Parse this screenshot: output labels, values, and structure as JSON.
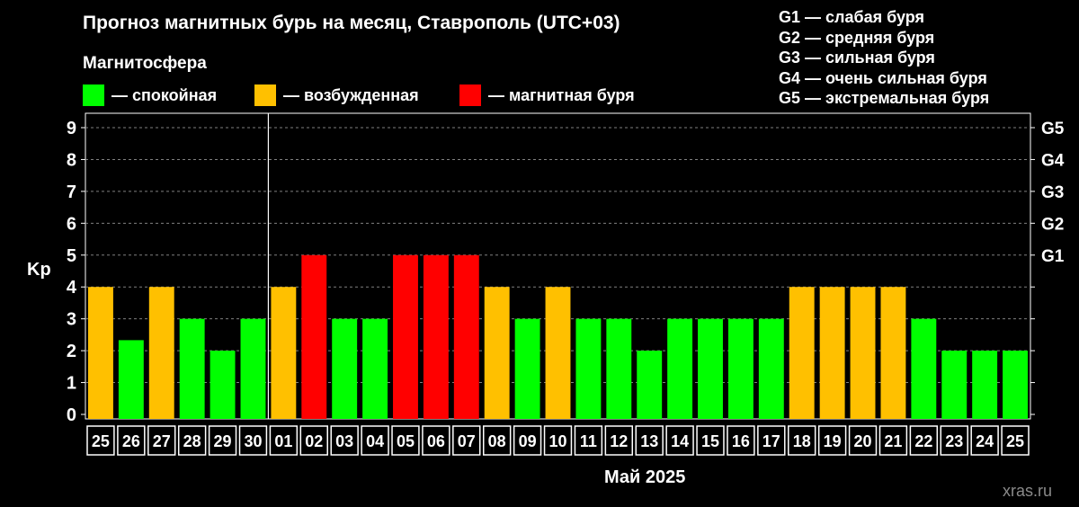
{
  "title": "Прогноз магнитных бурь на месяц, Ставрополь (UTC+03)",
  "legend": {
    "title": "Магнитосфера",
    "items": [
      {
        "label": "— спокойная",
        "color": "#00ff00"
      },
      {
        "label": "— возбужденная",
        "color": "#ffc000"
      },
      {
        "label": "— магнитная буря",
        "color": "#ff0000"
      }
    ]
  },
  "storm_scale": [
    "G1 — слабая буря",
    "G2 — средняя буря",
    "G3 — сильная буря",
    "G4 — очень сильная буря",
    "G5 — экстремальная буря"
  ],
  "watermark": "xras.ru",
  "chart_data": {
    "type": "bar",
    "ylabel": "Kp",
    "xlabel": "Май 2025",
    "ylim": [
      0,
      9
    ],
    "yticks": [
      0,
      1,
      2,
      3,
      4,
      5,
      6,
      7,
      8,
      9
    ],
    "right_ticks": [
      {
        "value": 5,
        "label": "G1"
      },
      {
        "value": 6,
        "label": "G2"
      },
      {
        "value": 7,
        "label": "G3"
      },
      {
        "value": 8,
        "label": "G4"
      },
      {
        "value": 9,
        "label": "G5"
      }
    ],
    "grid": true,
    "month_separator_after": "30",
    "categories": [
      "25",
      "26",
      "27",
      "28",
      "29",
      "30",
      "01",
      "02",
      "03",
      "04",
      "05",
      "06",
      "07",
      "08",
      "09",
      "10",
      "11",
      "12",
      "13",
      "14",
      "15",
      "16",
      "17",
      "18",
      "19",
      "20",
      "21",
      "22",
      "23",
      "24",
      "25"
    ],
    "values": [
      4,
      2.33,
      4,
      3,
      2,
      3,
      4,
      5,
      3,
      3,
      5,
      5,
      5,
      4,
      3,
      4,
      3,
      3,
      2,
      3,
      3,
      3,
      3,
      4,
      4,
      4,
      4,
      3,
      2,
      2,
      2
    ],
    "levels": [
      "excited",
      "quiet",
      "excited",
      "quiet",
      "quiet",
      "quiet",
      "excited",
      "storm",
      "quiet",
      "quiet",
      "storm",
      "storm",
      "storm",
      "excited",
      "quiet",
      "excited",
      "quiet",
      "quiet",
      "quiet",
      "quiet",
      "quiet",
      "quiet",
      "quiet",
      "excited",
      "excited",
      "excited",
      "excited",
      "quiet",
      "quiet",
      "quiet",
      "quiet"
    ],
    "level_colors": {
      "quiet": "#00ff00",
      "excited": "#ffc000",
      "storm": "#ff0000"
    }
  }
}
